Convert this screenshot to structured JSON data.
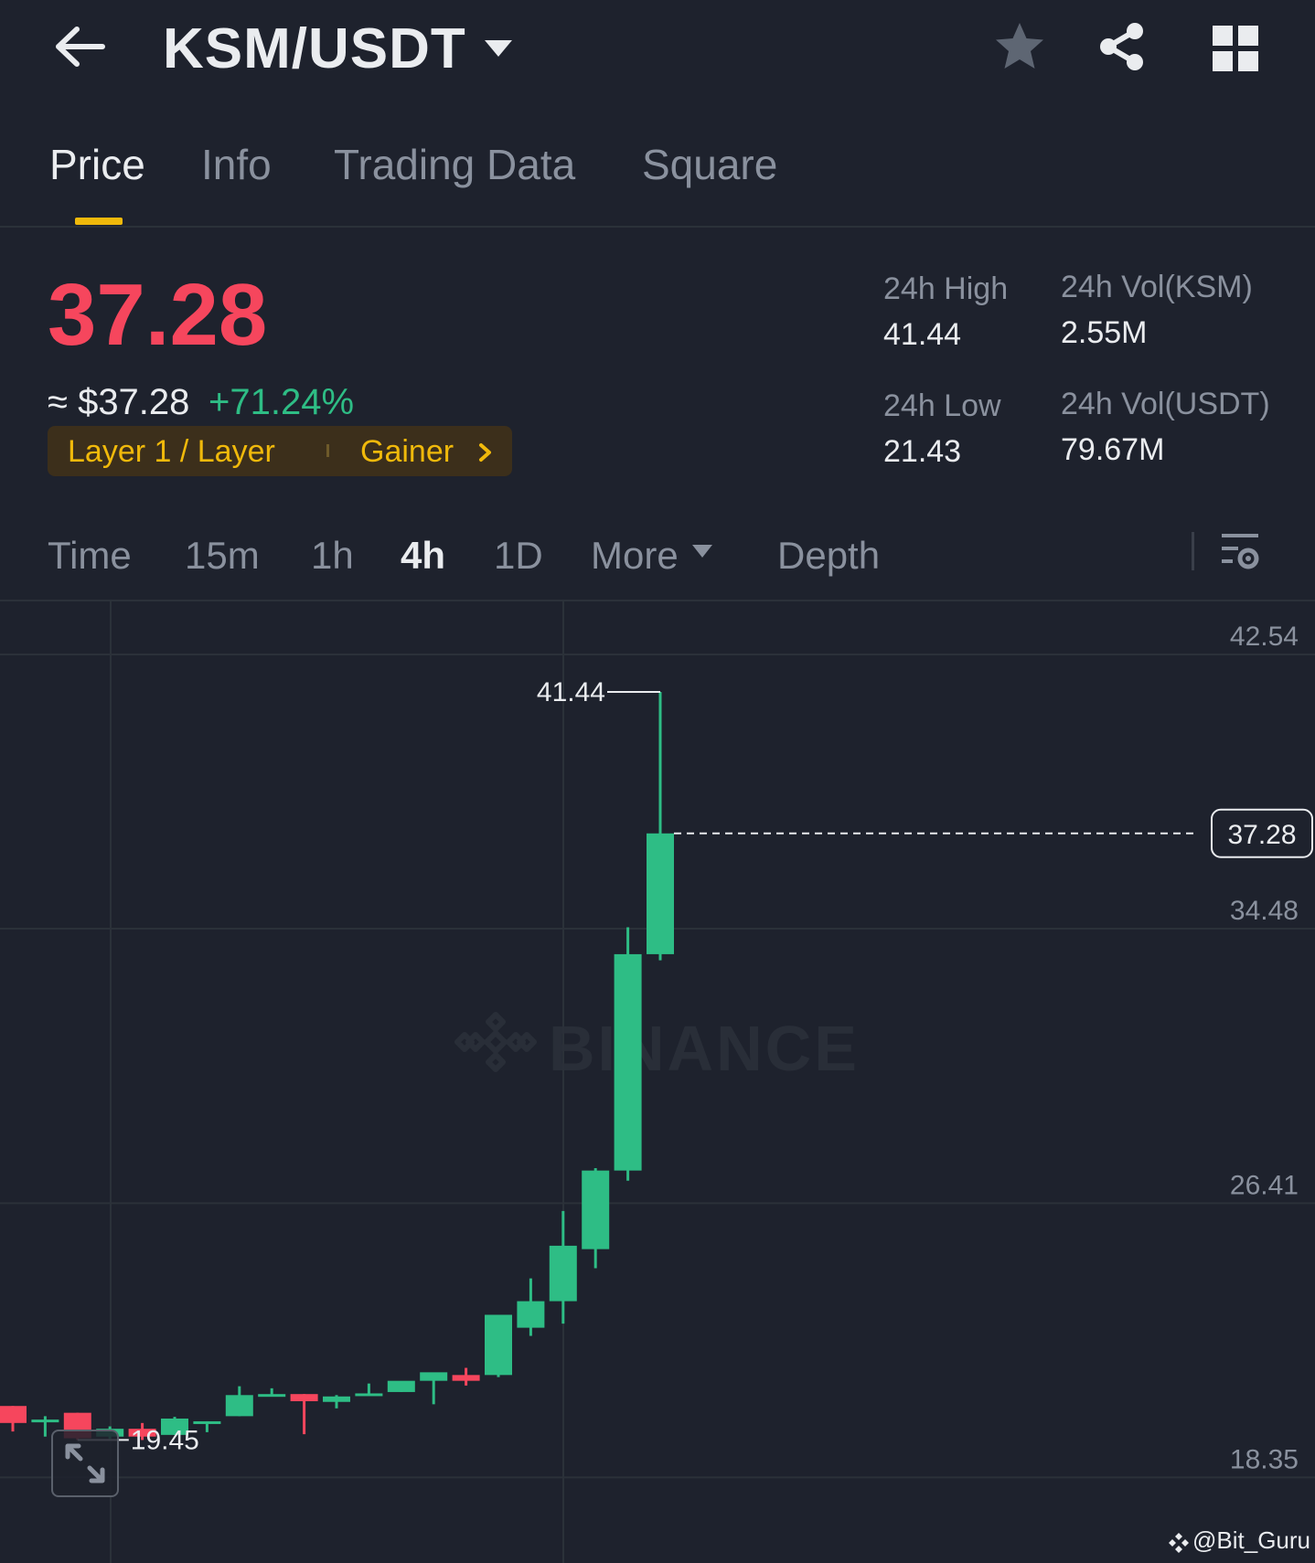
{
  "header": {
    "pair": "KSM/USDT",
    "icons": [
      "back-arrow-icon",
      "caret-down-icon",
      "star-icon",
      "share-icon",
      "grid-icon"
    ]
  },
  "tabs": [
    {
      "label": "Price",
      "active": true
    },
    {
      "label": "Info",
      "active": false
    },
    {
      "label": "Trading Data",
      "active": false
    },
    {
      "label": "Square",
      "active": false
    }
  ],
  "ticker": {
    "last_price": "37.28",
    "approx_usd": "≈ $37.28",
    "change_pct": "+71.24%",
    "tags": {
      "category": "Layer 1 / Layer",
      "badge": "Gainer"
    },
    "stats": {
      "high_label": "24h High",
      "high_value": "41.44",
      "low_label": "24h Low",
      "low_value": "21.43",
      "vol_base_label": "24h Vol(KSM)",
      "vol_base_value": "2.55M",
      "vol_quote_label": "24h Vol(USDT)",
      "vol_quote_value": "79.67M"
    }
  },
  "intervals": [
    {
      "label": "Time",
      "active": false
    },
    {
      "label": "15m",
      "active": false
    },
    {
      "label": "1h",
      "active": false
    },
    {
      "label": "4h",
      "active": true
    },
    {
      "label": "1D",
      "active": false
    },
    {
      "label": "More",
      "active": false
    },
    {
      "label": "Depth",
      "active": false
    }
  ],
  "colors": {
    "up": "#2ebd85",
    "down": "#f6465d",
    "accent": "#f0b90b",
    "background": "#1e222d"
  },
  "chart_data": {
    "type": "candlestick",
    "y_ticks": [
      "42.54",
      "34.48",
      "26.41",
      "18.35"
    ],
    "ylim": [
      17.0,
      43.9
    ],
    "grid": true,
    "current_price_label": "37.28",
    "high_marker": "41.44",
    "low_marker": "19.45",
    "watermark": "BINANCE",
    "candles": [
      {
        "o": 20.45,
        "h": 20.45,
        "l": 19.7,
        "c": 19.95
      },
      {
        "o": 19.98,
        "h": 20.15,
        "l": 19.55,
        "c": 20.05
      },
      {
        "o": 20.25,
        "h": 20.25,
        "l": 19.45,
        "c": 19.5
      },
      {
        "o": 19.55,
        "h": 19.85,
        "l": 19.48,
        "c": 19.78
      },
      {
        "o": 19.78,
        "h": 19.95,
        "l": 19.45,
        "c": 19.55
      },
      {
        "o": 19.6,
        "h": 20.13,
        "l": 19.6,
        "c": 20.08
      },
      {
        "o": 20.0,
        "h": 20.0,
        "l": 19.68,
        "c": 20.0
      },
      {
        "o": 20.15,
        "h": 21.03,
        "l": 20.15,
        "c": 20.77
      },
      {
        "o": 20.73,
        "h": 20.97,
        "l": 20.73,
        "c": 20.8
      },
      {
        "o": 20.8,
        "h": 20.8,
        "l": 19.62,
        "c": 20.59
      },
      {
        "o": 20.57,
        "h": 20.77,
        "l": 20.38,
        "c": 20.73
      },
      {
        "o": 20.75,
        "h": 21.11,
        "l": 20.75,
        "c": 20.82
      },
      {
        "o": 20.86,
        "h": 21.11,
        "l": 20.86,
        "c": 21.19
      },
      {
        "o": 21.19,
        "h": 21.31,
        "l": 20.5,
        "c": 21.44
      },
      {
        "o": 21.36,
        "h": 21.57,
        "l": 21.05,
        "c": 21.19
      },
      {
        "o": 21.36,
        "h": 23.13,
        "l": 21.3,
        "c": 23.13
      },
      {
        "o": 22.75,
        "h": 24.2,
        "l": 22.51,
        "c": 23.53
      },
      {
        "o": 23.53,
        "h": 26.18,
        "l": 22.87,
        "c": 25.16
      },
      {
        "o": 25.06,
        "h": 27.44,
        "l": 24.5,
        "c": 27.37
      },
      {
        "o": 27.37,
        "h": 34.52,
        "l": 27.07,
        "c": 33.73
      },
      {
        "o": 33.73,
        "h": 41.44,
        "l": 33.55,
        "c": 37.28
      }
    ]
  },
  "footer": {
    "credit": "@Bit_Guru"
  }
}
